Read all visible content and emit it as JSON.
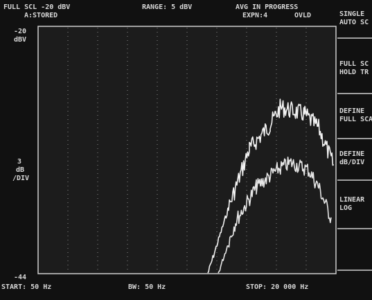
{
  "header": {
    "full_scale": "FULL SCL -20 dBV",
    "trace": "A:STORED",
    "range": "RANGE: 5 dBV",
    "status": "AVG IN PROGRESS",
    "expansion": "EXPN:4",
    "overload": "OVLD"
  },
  "axis": {
    "top": "-20",
    "top_unit": "dBV",
    "scale": [
      "3",
      "dB",
      "/DIV"
    ],
    "bottom": "-44"
  },
  "footer": {
    "start": "START: 50 Hz",
    "bandwidth": "BW: 50 Hz",
    "stop": "STOP: 20 000 Hz"
  },
  "softkeys": [
    [
      "SINGLE",
      "AUTO SC"
    ],
    [
      "FULL SC",
      "HOLD TR"
    ],
    [
      "DEFINE",
      "FULL SCA"
    ],
    [
      "DEFINE",
      "dB/DIV"
    ],
    [
      "LINEAR",
      "LOG"
    ]
  ]
}
